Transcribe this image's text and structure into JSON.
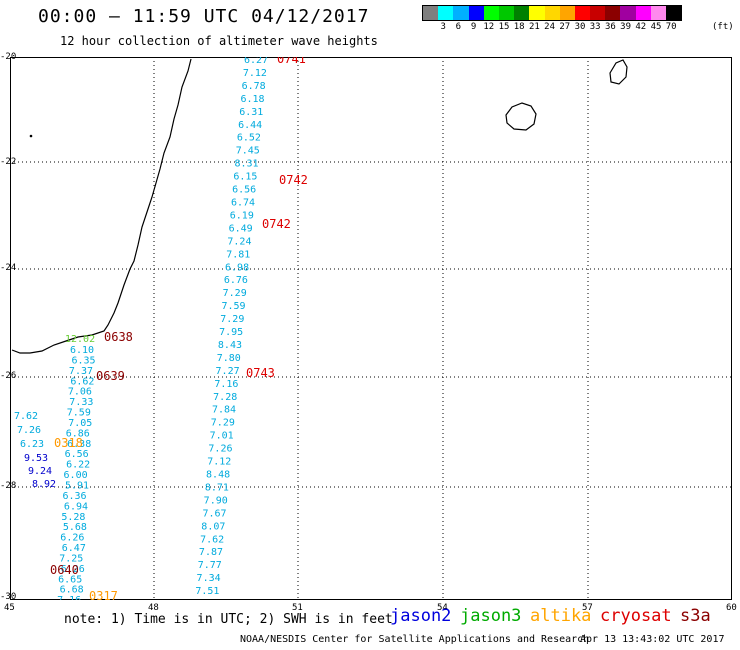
{
  "title": "00:00 — 11:59 UTC 04/12/2017",
  "subtitle": "12 hour collection of altimeter wave heights",
  "legend": {
    "colors": [
      "#7f7f7f",
      "#00ffff",
      "#00b0ff",
      "#0000ff",
      "#00ff00",
      "#00c800",
      "#008000",
      "#ffff00",
      "#ffd700",
      "#ffa500",
      "#ff0000",
      "#c80000",
      "#8b0000",
      "#a000a0",
      "#ff00ff",
      "#ff88ee",
      "#000000"
    ],
    "labels": [
      "3",
      "6",
      "9",
      "12",
      "15",
      "18",
      "21",
      "24",
      "27",
      "30",
      "33",
      "36",
      "39",
      "42",
      "45",
      "70"
    ],
    "unit": "(ft)"
  },
  "axes": {
    "y_labels": [
      "-20",
      "-22",
      "-24",
      "-26",
      "-28",
      "-30"
    ],
    "x_labels": [
      "45",
      "48",
      "51",
      "54",
      "57",
      "60"
    ]
  },
  "tracks": {
    "cyan_a": [
      "6.27",
      "7.12",
      "6.78",
      "6.18",
      "6.31",
      "6.44",
      "6.52",
      "7.45",
      "8.31",
      "6.15",
      "6.56",
      "6.74",
      "6.19",
      "6.49",
      "7.24",
      "7.81",
      "6.98",
      "6.76",
      "7.29",
      "7.59",
      "7.29",
      "7.95",
      "8.43",
      "7.80",
      "7.27",
      "7.16",
      "7.28",
      "7.84",
      "7.29",
      "7.01",
      "7.26",
      "7.12",
      "8.48",
      "8.71",
      "7.90",
      "7.67",
      "8.07",
      "7.62",
      "7.87",
      "7.77",
      "7.34",
      "7.51",
      "7.48",
      "6.65"
    ],
    "cyan_b": [
      "6.10",
      "6.35",
      "7.37",
      "6.62",
      "7.06",
      "7.33",
      "7.59",
      "7.05",
      "6.86",
      "6.38",
      "6.56",
      "6.22",
      "6.00",
      "5.91",
      "6.36",
      "6.94",
      "5.28",
      "5.68",
      "6.26",
      "6.47",
      "7.25",
      "6.26",
      "6.65",
      "6.68",
      "7.16",
      "7.21",
      "6.89"
    ],
    "cyan_c": [
      "7.62",
      "7.26",
      "6.23"
    ],
    "blue": [
      "9.53",
      "9.24",
      "8.92"
    ],
    "green": [
      "12.02"
    ]
  },
  "times": {
    "red": [
      "0741",
      "0742",
      "0742",
      "0743",
      "0744"
    ],
    "darkred": [
      "0638",
      "0639",
      "0640"
    ],
    "orange": [
      "0318",
      "0317"
    ]
  },
  "footer": {
    "note": "note: 1) Time is in UTC; 2) SWH is in feet",
    "satellites": [
      {
        "name": "jason2",
        "color": "#0000dd"
      },
      {
        "name": "jason3",
        "color": "#00aa00"
      },
      {
        "name": "altika",
        "color": "#ffa500"
      },
      {
        "name": "cryosat",
        "color": "#dd0000"
      },
      {
        "name": "s3a",
        "color": "#8b0000"
      }
    ],
    "credit": "NOAA/NESDIS Center for Satellite Applications and Research",
    "timestamp": "Apr 13 13:43:02 UTC 2017"
  }
}
